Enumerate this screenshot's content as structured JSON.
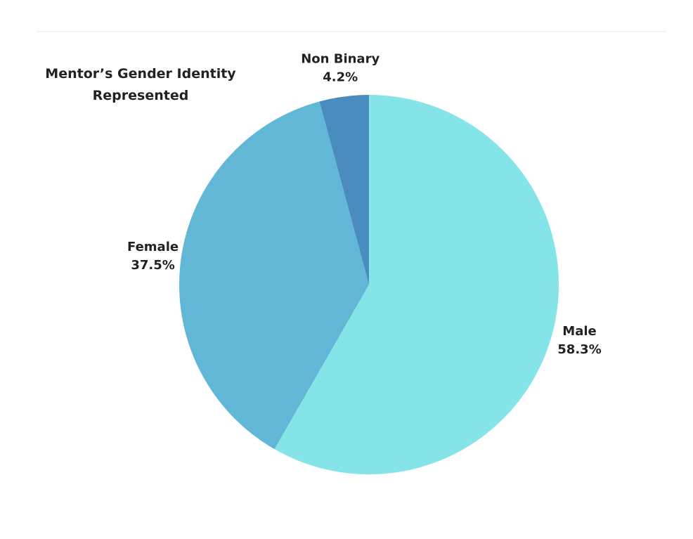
{
  "chart_data": {
    "type": "pie",
    "title": "Mentor’s Gender Identity Represented",
    "categories": [
      "Male",
      "Female",
      "Non Binary"
    ],
    "values": [
      58.3,
      37.5,
      4.2
    ],
    "value_labels": [
      "58.3%",
      "37.5%",
      "4.2%"
    ],
    "colors": [
      "#84e4e8",
      "#62b7d6",
      "#4a8cbf"
    ]
  }
}
